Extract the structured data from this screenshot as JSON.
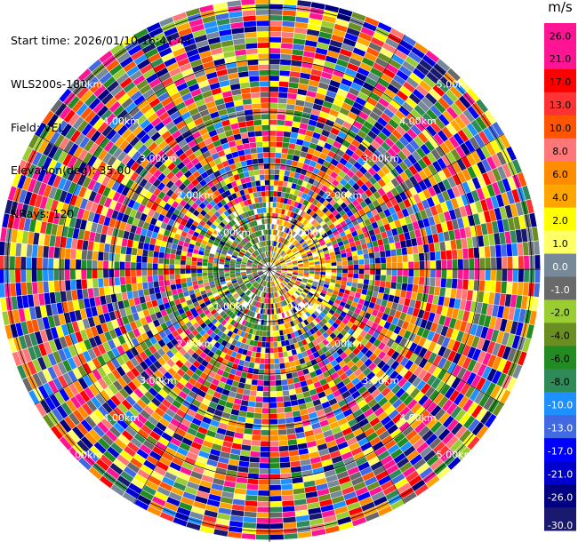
{
  "header": {
    "start_time": "Start time: 2026/01/10 16:41:44",
    "instrument": "WLS200s-181",
    "field": "Field: VEL",
    "elevation": "Elevation(deg): 35.00",
    "nrays": "NRays: 120"
  },
  "chart_data": {
    "type": "heatmap",
    "projection": "polar PPI",
    "n_rays": 120,
    "range_rings_km": [
      "1.00km",
      "2.00km",
      "3.00km",
      "4.00km",
      "5.00km"
    ],
    "colorbar": {
      "unit": "m/s",
      "ticks": [
        "26.0",
        "21.0",
        "17.0",
        "13.0",
        "10.0",
        "8.0",
        "6.0",
        "4.0",
        "2.0",
        "1.0",
        "0.0",
        "-1.0",
        "-2.0",
        "-4.0",
        "-6.0",
        "-8.0",
        "-10.0",
        "-13.0",
        "-17.0",
        "-21.0",
        "-26.0",
        "-30.0"
      ],
      "colors": [
        "#ff1493",
        "#ff1493",
        "#ff0000",
        "#ff3333",
        "#ff5500",
        "#ff7777",
        "#ff8c00",
        "#ffa500",
        "#ffff00",
        "#ffff66",
        "#778899",
        "#696969",
        "#9acd32",
        "#6b8e23",
        "#228b22",
        "#2e8b57",
        "#1e90ff",
        "#4169e1",
        "#0000ff",
        "#0000cd",
        "#000080",
        "#191970"
      ]
    }
  }
}
